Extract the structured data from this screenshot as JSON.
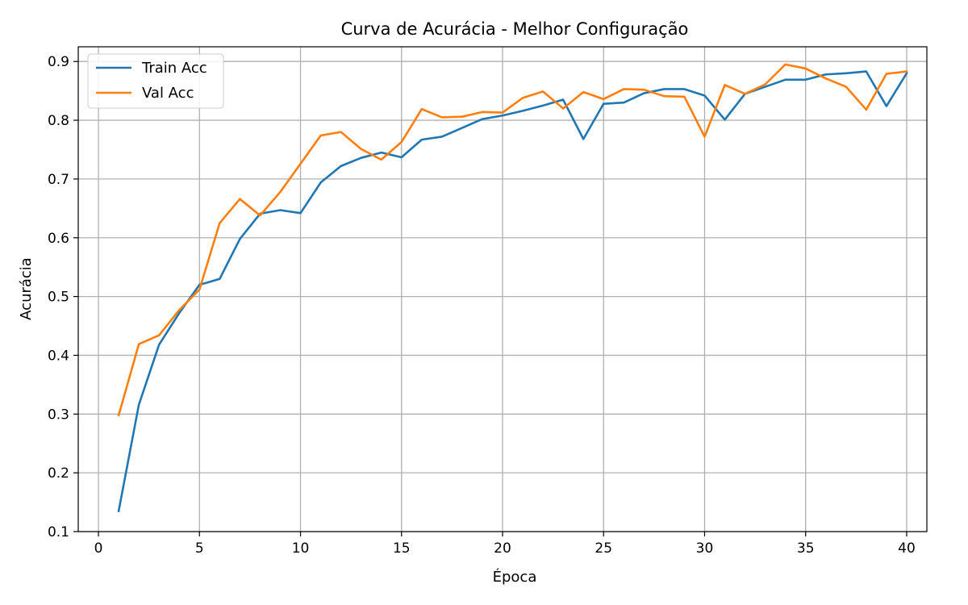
{
  "chart_data": {
    "type": "line",
    "title": "Curva de Acurácia - Melhor Configuração",
    "xlabel": "Época",
    "ylabel": "Acurácia",
    "xlim": [
      -1,
      41
    ],
    "ylim": [
      0.1,
      0.925
    ],
    "xticks": [
      0,
      5,
      10,
      15,
      20,
      25,
      30,
      35,
      40
    ],
    "yticks": [
      0.1,
      0.2,
      0.3,
      0.4,
      0.5,
      0.6,
      0.7,
      0.8,
      0.9
    ],
    "grid": true,
    "legend_position": "top-left",
    "x": [
      1,
      2,
      3,
      4,
      5,
      6,
      7,
      8,
      9,
      10,
      11,
      12,
      13,
      14,
      15,
      16,
      17,
      18,
      19,
      20,
      21,
      22,
      23,
      24,
      25,
      26,
      27,
      28,
      29,
      30,
      31,
      32,
      33,
      34,
      35,
      36,
      37,
      38,
      39,
      40
    ],
    "series": [
      {
        "name": "Train Acc",
        "color": "#1f77b4",
        "values": [
          0.135,
          0.316,
          0.418,
          0.472,
          0.52,
          0.53,
          0.598,
          0.641,
          0.647,
          0.642,
          0.694,
          0.722,
          0.736,
          0.745,
          0.737,
          0.767,
          0.772,
          0.787,
          0.802,
          0.808,
          0.816,
          0.825,
          0.835,
          0.768,
          0.828,
          0.83,
          0.846,
          0.853,
          0.853,
          0.842,
          0.801,
          0.845,
          0.857,
          0.869,
          0.869,
          0.878,
          0.88,
          0.883,
          0.824,
          0.88
        ]
      },
      {
        "name": "Val Acc",
        "color": "#ff7f0e",
        "values": [
          0.298,
          0.419,
          0.434,
          0.477,
          0.512,
          0.625,
          0.666,
          0.638,
          0.678,
          0.726,
          0.774,
          0.78,
          0.751,
          0.733,
          0.763,
          0.819,
          0.805,
          0.806,
          0.814,
          0.813,
          0.838,
          0.849,
          0.82,
          0.848,
          0.836,
          0.853,
          0.852,
          0.841,
          0.84,
          0.772,
          0.86,
          0.845,
          0.861,
          0.895,
          0.888,
          0.871,
          0.857,
          0.818,
          0.879,
          0.883
        ]
      }
    ]
  }
}
